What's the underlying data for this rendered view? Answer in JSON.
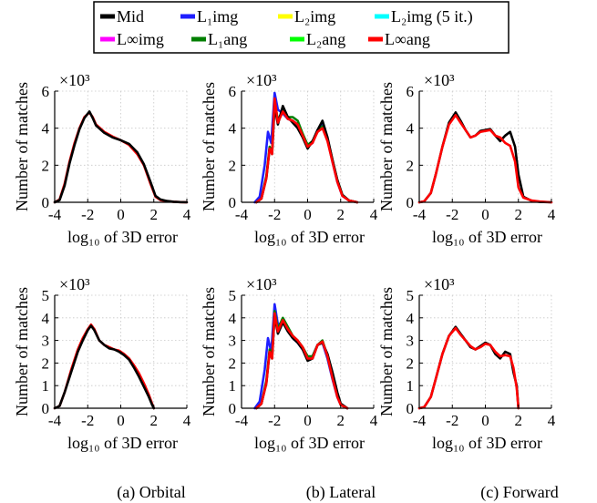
{
  "legend": {
    "entries": [
      {
        "label": "Mid",
        "color": "#000000"
      },
      {
        "label": "L₁img",
        "color": "#1f1fff"
      },
      {
        "label": "L₂img",
        "color": "#ffff00"
      },
      {
        "label": "L₂img (5 it.)",
        "color": "#00ffff"
      },
      {
        "label": "L∞img",
        "color": "#ff00ff"
      },
      {
        "label": "L₁ang",
        "color": "#007f00"
      },
      {
        "label": "L₂ang",
        "color": "#00ff00"
      },
      {
        "label": "L∞ang",
        "color": "#ff0000"
      }
    ]
  },
  "captions": [
    "(a) Orbital",
    "(b) Lateral",
    "(c) Forward"
  ],
  "chart_data": [
    {
      "type": "line",
      "column": "Orbital",
      "row": 1,
      "xlabel": "log₁₀ of 3D error",
      "ylabel": "Number of matches",
      "y_multiplier": "×10³",
      "xlim": [
        -4,
        4
      ],
      "ylim": [
        0,
        6
      ],
      "xticks": [
        -4,
        -2,
        0,
        2,
        4
      ],
      "yticks": [
        0,
        2,
        4,
        6
      ],
      "grid": true,
      "series": [
        {
          "name": "L∞ang",
          "color": "#ff0000",
          "x": [
            -4,
            -3.7,
            -3.4,
            -3.1,
            -2.8,
            -2.5,
            -2.2,
            -1.9,
            -1.7,
            -1.5,
            -1.0,
            -0.5,
            0.0,
            0.5,
            1.0,
            1.4,
            1.8,
            2.1,
            2.4,
            2.8,
            3.2,
            3.6,
            4.0
          ],
          "y": [
            0,
            0.15,
            1.0,
            2.2,
            3.2,
            4.0,
            4.6,
            4.85,
            4.6,
            4.2,
            3.8,
            3.55,
            3.35,
            3.1,
            2.6,
            2.0,
            1.0,
            0.3,
            0.12,
            0.06,
            0.03,
            0.01,
            0
          ]
        },
        {
          "name": "Mid",
          "color": "#000000",
          "x": [
            -4,
            -3.7,
            -3.4,
            -3.1,
            -2.8,
            -2.5,
            -2.2,
            -1.9,
            -1.7,
            -1.5,
            -1.0,
            -0.5,
            0.0,
            0.5,
            1.0,
            1.4,
            1.8,
            2.1,
            2.4,
            2.8,
            3.2,
            3.6,
            4.0
          ],
          "y": [
            0,
            0.12,
            0.9,
            2.1,
            3.1,
            3.95,
            4.55,
            4.9,
            4.55,
            4.15,
            3.75,
            3.5,
            3.35,
            3.15,
            2.7,
            2.05,
            1.1,
            0.35,
            0.15,
            0.07,
            0.03,
            0.01,
            0
          ]
        }
      ]
    },
    {
      "type": "line",
      "column": "Lateral",
      "row": 1,
      "xlabel": "log₁₀ of 3D error",
      "ylabel": "Number of matches",
      "y_multiplier": "×10³",
      "xlim": [
        -4,
        4
      ],
      "ylim": [
        0,
        6
      ],
      "xticks": [
        -4,
        -2,
        0,
        2,
        4
      ],
      "yticks": [
        0,
        2,
        4,
        6
      ],
      "grid": true,
      "series": [
        {
          "name": "L₁img",
          "color": "#1f1fff",
          "x": [
            -3.2,
            -2.9,
            -2.6,
            -2.4,
            -2.2,
            -2.0,
            -1.8,
            -1.5,
            -1.2,
            -0.9,
            -0.6,
            -0.3,
            0.0,
            0.3,
            0.6,
            0.9,
            1.2,
            1.5,
            1.8,
            2.1,
            2.5,
            3.0
          ],
          "y": [
            0,
            0.3,
            2.0,
            3.8,
            3.2,
            5.9,
            5.0,
            4.8,
            4.5,
            4.4,
            4.2,
            3.6,
            3.0,
            3.2,
            3.9,
            4.2,
            3.4,
            2.2,
            1.1,
            0.35,
            0.1,
            0
          ]
        },
        {
          "name": "L₁ang",
          "color": "#007f00",
          "x": [
            -3.1,
            -2.8,
            -2.5,
            -2.3,
            -2.15,
            -2.0,
            -1.8,
            -1.5,
            -1.2,
            -0.9,
            -0.6,
            -0.3,
            0.0,
            0.3,
            0.6,
            0.9,
            1.2,
            1.5,
            1.8,
            2.1,
            2.5,
            3.0
          ],
          "y": [
            0,
            0.2,
            1.4,
            3.0,
            2.7,
            5.5,
            4.4,
            5.0,
            4.6,
            4.6,
            4.4,
            3.7,
            3.1,
            3.3,
            3.8,
            4.1,
            3.4,
            2.3,
            1.2,
            0.4,
            0.1,
            0
          ]
        },
        {
          "name": "Mid",
          "color": "#000000",
          "x": [
            -3.1,
            -2.8,
            -2.5,
            -2.3,
            -2.15,
            -2.0,
            -1.8,
            -1.5,
            -1.2,
            -0.9,
            -0.6,
            -0.3,
            0.0,
            0.3,
            0.6,
            0.9,
            1.2,
            1.5,
            1.8,
            2.1,
            2.5,
            3.0
          ],
          "y": [
            0,
            0.2,
            1.3,
            2.9,
            2.6,
            5.2,
            4.2,
            5.2,
            4.6,
            4.3,
            4.0,
            3.5,
            2.9,
            3.3,
            3.9,
            4.4,
            3.5,
            2.3,
            1.2,
            0.4,
            0.1,
            0
          ]
        },
        {
          "name": "L∞ang",
          "color": "#ff0000",
          "x": [
            -3.1,
            -2.8,
            -2.5,
            -2.3,
            -2.15,
            -2.0,
            -1.8,
            -1.5,
            -1.2,
            -0.9,
            -0.6,
            -0.3,
            0.0,
            0.3,
            0.6,
            0.9,
            1.2,
            1.5,
            1.8,
            2.1,
            2.5,
            3.0
          ],
          "y": [
            0,
            0.2,
            1.3,
            2.9,
            2.6,
            5.6,
            4.3,
            4.9,
            4.5,
            4.4,
            4.2,
            3.6,
            3.0,
            3.2,
            3.8,
            4.0,
            3.3,
            2.2,
            1.1,
            0.35,
            0.1,
            0
          ]
        }
      ]
    },
    {
      "type": "line",
      "column": "Forward",
      "row": 1,
      "xlabel": "log₁₀ of 3D error",
      "ylabel": "Number of matches",
      "y_multiplier": "×10³",
      "xlim": [
        -4,
        4
      ],
      "ylim": [
        0,
        6
      ],
      "xticks": [
        -4,
        -2,
        0,
        2,
        4
      ],
      "yticks": [
        0,
        2,
        4,
        6
      ],
      "grid": true,
      "series": [
        {
          "name": "Mid",
          "color": "#000000",
          "x": [
            -4,
            -3.7,
            -3.3,
            -3.0,
            -2.6,
            -2.2,
            -1.8,
            -1.5,
            -1.2,
            -0.9,
            -0.6,
            -0.3,
            0.0,
            0.3,
            0.6,
            0.9,
            1.2,
            1.5,
            1.8,
            2.0,
            2.3,
            2.8,
            3.3,
            4.0
          ],
          "y": [
            0,
            0.05,
            0.5,
            1.5,
            3.0,
            4.3,
            4.85,
            4.4,
            3.9,
            3.5,
            3.6,
            3.85,
            3.9,
            3.95,
            3.6,
            3.3,
            3.6,
            3.8,
            3.0,
            1.5,
            0.3,
            0.08,
            0.02,
            0
          ]
        },
        {
          "name": "L∞ang",
          "color": "#ff0000",
          "x": [
            -4,
            -3.7,
            -3.3,
            -3.0,
            -2.6,
            -2.2,
            -1.8,
            -1.5,
            -1.2,
            -0.9,
            -0.6,
            -0.3,
            0.0,
            0.3,
            0.6,
            0.9,
            1.2,
            1.5,
            1.8,
            2.0,
            2.3,
            2.8,
            3.3,
            4.0
          ],
          "y": [
            0,
            0.05,
            0.5,
            1.5,
            3.0,
            4.2,
            4.7,
            4.3,
            3.9,
            3.5,
            3.6,
            3.8,
            3.85,
            3.9,
            3.6,
            3.5,
            3.2,
            3.05,
            2.2,
            0.8,
            0.25,
            0.1,
            0.04,
            0
          ]
        }
      ]
    },
    {
      "type": "line",
      "column": "Orbital",
      "row": 2,
      "xlabel": "log₁₀ of 3D error",
      "ylabel": "Number of matches",
      "y_multiplier": "×10³",
      "xlim": [
        -4,
        4
      ],
      "ylim": [
        0,
        5
      ],
      "xticks": [
        -4,
        -2,
        0,
        2,
        4
      ],
      "yticks": [
        0,
        1,
        2,
        3,
        4,
        5
      ],
      "grid": true,
      "series": [
        {
          "name": "L∞ang",
          "color": "#ff0000",
          "x": [
            -4,
            -3.7,
            -3.4,
            -3.0,
            -2.6,
            -2.3,
            -2.0,
            -1.8,
            -1.6,
            -1.3,
            -1.0,
            -0.7,
            -0.4,
            -0.1,
            0.2,
            0.5,
            0.8,
            1.1,
            1.4,
            1.7,
            1.9,
            2.0
          ],
          "y": [
            0,
            0.1,
            0.7,
            1.7,
            2.6,
            3.1,
            3.5,
            3.7,
            3.5,
            3.0,
            2.8,
            2.7,
            2.6,
            2.55,
            2.4,
            2.2,
            1.9,
            1.55,
            1.1,
            0.6,
            0.2,
            0
          ]
        },
        {
          "name": "Mid",
          "color": "#000000",
          "x": [
            -4,
            -3.7,
            -3.4,
            -3.0,
            -2.6,
            -2.3,
            -2.0,
            -1.8,
            -1.6,
            -1.3,
            -1.0,
            -0.7,
            -0.4,
            -0.1,
            0.2,
            0.5,
            0.8,
            1.1,
            1.4,
            1.7,
            1.9,
            2.0
          ],
          "y": [
            0,
            0.1,
            0.7,
            1.6,
            2.5,
            3.0,
            3.45,
            3.65,
            3.45,
            3.0,
            2.8,
            2.65,
            2.6,
            2.5,
            2.35,
            2.15,
            1.8,
            1.4,
            0.95,
            0.5,
            0.15,
            0
          ]
        }
      ]
    },
    {
      "type": "line",
      "column": "Lateral",
      "row": 2,
      "xlabel": "log₁₀ of 3D error",
      "ylabel": "Number of matches",
      "y_multiplier": "×10³",
      "xlim": [
        -4,
        4
      ],
      "ylim": [
        0,
        5
      ],
      "xticks": [
        -4,
        -2,
        0,
        2,
        4
      ],
      "yticks": [
        0,
        1,
        2,
        3,
        4,
        5
      ],
      "grid": true,
      "series": [
        {
          "name": "L₁img",
          "color": "#1f1fff",
          "x": [
            -3.2,
            -2.9,
            -2.6,
            -2.4,
            -2.2,
            -2.0,
            -1.8,
            -1.5,
            -1.2,
            -0.9,
            -0.6,
            -0.3,
            0.0,
            0.3,
            0.6,
            0.9,
            1.2,
            1.5,
            1.8,
            2.0,
            2.4
          ],
          "y": [
            0,
            0.3,
            1.7,
            3.1,
            2.5,
            4.6,
            3.7,
            3.8,
            3.5,
            3.1,
            2.9,
            2.6,
            2.2,
            2.3,
            2.8,
            2.9,
            2.2,
            1.3,
            0.5,
            0.15,
            0
          ]
        },
        {
          "name": "L₁ang",
          "color": "#007f00",
          "x": [
            -3.1,
            -2.8,
            -2.5,
            -2.3,
            -2.15,
            -2.0,
            -1.8,
            -1.5,
            -1.2,
            -0.9,
            -0.6,
            -0.3,
            0.0,
            0.3,
            0.6,
            0.9,
            1.2,
            1.5,
            1.8,
            2.0,
            2.4
          ],
          "y": [
            0,
            0.2,
            1.2,
            2.6,
            2.3,
            4.3,
            3.5,
            4.0,
            3.6,
            3.2,
            3.0,
            2.7,
            2.3,
            2.3,
            2.8,
            3.0,
            2.3,
            1.4,
            0.55,
            0.15,
            0
          ]
        },
        {
          "name": "Mid",
          "color": "#000000",
          "x": [
            -3.1,
            -2.8,
            -2.5,
            -2.3,
            -2.15,
            -2.0,
            -1.8,
            -1.5,
            -1.2,
            -0.9,
            -0.6,
            -0.3,
            0.0,
            0.3,
            0.6,
            0.9,
            1.2,
            1.5,
            1.8,
            2.0,
            2.4
          ],
          "y": [
            0,
            0.2,
            1.1,
            2.5,
            2.2,
            4.1,
            3.3,
            3.8,
            3.4,
            3.1,
            2.9,
            2.6,
            2.1,
            2.2,
            2.8,
            2.9,
            2.4,
            1.6,
            0.7,
            0.2,
            0
          ]
        },
        {
          "name": "L∞ang",
          "color": "#ff0000",
          "x": [
            -3.1,
            -2.8,
            -2.5,
            -2.3,
            -2.15,
            -2.0,
            -1.8,
            -1.5,
            -1.2,
            -0.9,
            -0.6,
            -0.3,
            0.0,
            0.3,
            0.6,
            0.9,
            1.2,
            1.5,
            1.8,
            2.0,
            2.4
          ],
          "y": [
            0,
            0.2,
            1.1,
            2.5,
            2.2,
            4.2,
            3.4,
            3.9,
            3.5,
            3.2,
            3.0,
            2.7,
            2.2,
            2.2,
            2.8,
            2.95,
            2.3,
            1.35,
            0.5,
            0.15,
            0
          ]
        }
      ]
    },
    {
      "type": "line",
      "column": "Forward",
      "row": 2,
      "xlabel": "log₁₀ of 3D error",
      "ylabel": "Number of matches",
      "y_multiplier": "×10³",
      "xlim": [
        -4,
        4
      ],
      "ylim": [
        0,
        5
      ],
      "xticks": [
        -4,
        -2,
        0,
        2,
        4
      ],
      "yticks": [
        0,
        1,
        2,
        3,
        4,
        5
      ],
      "grid": true,
      "series": [
        {
          "name": "Mid",
          "color": "#000000",
          "x": [
            -4,
            -3.7,
            -3.3,
            -3.0,
            -2.6,
            -2.2,
            -1.8,
            -1.5,
            -1.2,
            -0.9,
            -0.6,
            -0.3,
            0.0,
            0.3,
            0.6,
            0.9,
            1.2,
            1.5,
            1.7,
            1.9,
            2.0
          ],
          "y": [
            0,
            0.05,
            0.5,
            1.3,
            2.4,
            3.2,
            3.6,
            3.3,
            3.0,
            2.7,
            2.6,
            2.75,
            2.9,
            2.8,
            2.4,
            2.2,
            2.5,
            2.4,
            1.6,
            1.0,
            0
          ]
        },
        {
          "name": "L∞ang",
          "color": "#ff0000",
          "x": [
            -4,
            -3.7,
            -3.3,
            -3.0,
            -2.6,
            -2.2,
            -1.8,
            -1.5,
            -1.2,
            -0.9,
            -0.6,
            -0.3,
            0.0,
            0.3,
            0.6,
            0.9,
            1.2,
            1.5,
            1.7,
            1.9,
            2.0
          ],
          "y": [
            0,
            0.05,
            0.5,
            1.3,
            2.4,
            3.2,
            3.55,
            3.25,
            3.0,
            2.75,
            2.6,
            2.7,
            2.85,
            2.8,
            2.5,
            2.3,
            2.35,
            2.3,
            1.8,
            0.9,
            0
          ]
        }
      ]
    }
  ]
}
